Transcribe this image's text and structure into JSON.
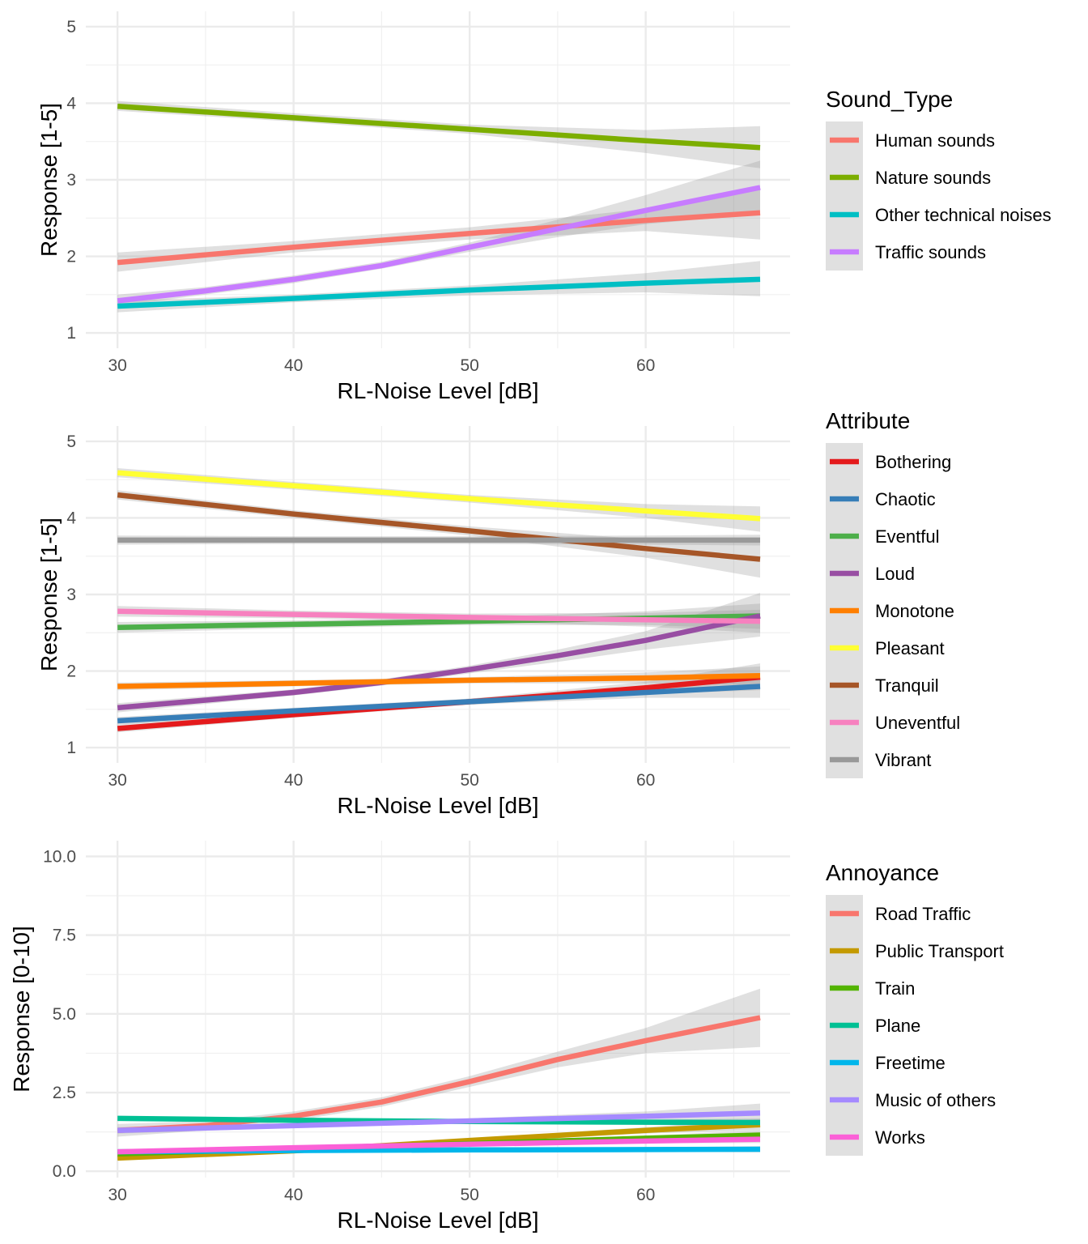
{
  "chart_data": [
    {
      "type": "line",
      "xlabel": "RL-Noise Level [dB]",
      "ylabel": "Response [1-5]",
      "xlim": [
        28.2,
        68.2
      ],
      "ylim": [
        0.8,
        5.2
      ],
      "x_ticks": [
        30,
        40,
        50,
        60
      ],
      "y_ticks": [
        1,
        2,
        3,
        4,
        5
      ],
      "y_tick_labels": [
        "1",
        "2",
        "3",
        "4",
        "5"
      ],
      "grid": true,
      "confidence_bands": true,
      "legend_title": "Sound_Type",
      "legend_position": "right",
      "series": [
        {
          "name": "Human sounds",
          "color": "#F8766D",
          "x": [
            30,
            40,
            50,
            60,
            66.5
          ],
          "y": [
            1.92,
            2.12,
            2.3,
            2.47,
            2.57
          ],
          "lower": [
            1.8,
            2.05,
            2.22,
            2.33,
            2.22
          ],
          "upper": [
            2.05,
            2.2,
            2.38,
            2.62,
            2.92
          ]
        },
        {
          "name": "Nature sounds",
          "color": "#7CAE00",
          "x": [
            30,
            40,
            50,
            60,
            66.5
          ],
          "y": [
            3.96,
            3.81,
            3.66,
            3.51,
            3.42
          ],
          "lower": [
            3.9,
            3.76,
            3.6,
            3.35,
            3.15
          ],
          "upper": [
            4.03,
            3.87,
            3.72,
            3.65,
            3.7
          ]
        },
        {
          "name": "Other technical noises",
          "color": "#00BFC4",
          "x": [
            30,
            40,
            50,
            60,
            66.5
          ],
          "y": [
            1.35,
            1.45,
            1.56,
            1.65,
            1.7
          ],
          "lower": [
            1.27,
            1.4,
            1.49,
            1.53,
            1.48
          ],
          "upper": [
            1.42,
            1.5,
            1.62,
            1.78,
            1.94
          ]
        },
        {
          "name": "Traffic sounds",
          "color": "#C77CFF",
          "x": [
            30,
            35,
            40,
            45,
            50,
            55,
            60,
            66.5
          ],
          "y": [
            1.42,
            1.55,
            1.7,
            1.88,
            2.12,
            2.36,
            2.6,
            2.9
          ],
          "lower": [
            1.35,
            1.5,
            1.65,
            1.84,
            2.06,
            2.25,
            2.42,
            2.55
          ],
          "upper": [
            1.5,
            1.6,
            1.75,
            1.93,
            2.18,
            2.48,
            2.8,
            3.25
          ]
        }
      ]
    },
    {
      "type": "line",
      "xlabel": "RL-Noise Level [dB]",
      "ylabel": "Response [1-5]",
      "xlim": [
        28.2,
        68.2
      ],
      "ylim": [
        0.8,
        5.2
      ],
      "x_ticks": [
        30,
        40,
        50,
        60
      ],
      "y_ticks": [
        1,
        2,
        3,
        4,
        5
      ],
      "y_tick_labels": [
        "1",
        "2",
        "3",
        "4",
        "5"
      ],
      "grid": true,
      "confidence_bands": true,
      "legend_title": "Attribute",
      "legend_position": "right",
      "series": [
        {
          "name": "Bothering",
          "color": "#E41A1C",
          "x": [
            30,
            40,
            50,
            60,
            66.5
          ],
          "y": [
            1.25,
            1.43,
            1.6,
            1.78,
            1.92
          ],
          "lower": [
            1.2,
            1.39,
            1.56,
            1.7,
            1.75
          ],
          "upper": [
            1.3,
            1.47,
            1.64,
            1.86,
            2.1
          ]
        },
        {
          "name": "Chaotic",
          "color": "#377EB8",
          "x": [
            30,
            40,
            50,
            60,
            66.5
          ],
          "y": [
            1.35,
            1.48,
            1.6,
            1.72,
            1.8
          ],
          "lower": [
            1.3,
            1.44,
            1.56,
            1.65,
            1.65
          ],
          "upper": [
            1.4,
            1.52,
            1.64,
            1.8,
            1.96
          ]
        },
        {
          "name": "Eventful",
          "color": "#4DAF4A",
          "x": [
            30,
            40,
            50,
            60,
            66.5
          ],
          "y": [
            2.57,
            2.61,
            2.65,
            2.69,
            2.72
          ],
          "lower": [
            2.5,
            2.56,
            2.6,
            2.6,
            2.55
          ],
          "upper": [
            2.64,
            2.66,
            2.7,
            2.78,
            2.88
          ]
        },
        {
          "name": "Loud",
          "color": "#984EA3",
          "x": [
            30,
            35,
            40,
            45,
            50,
            55,
            60,
            66.5
          ],
          "y": [
            1.52,
            1.62,
            1.72,
            1.85,
            2.02,
            2.2,
            2.4,
            2.72
          ],
          "lower": [
            1.46,
            1.57,
            1.68,
            1.81,
            1.97,
            2.12,
            2.28,
            2.45
          ],
          "upper": [
            1.58,
            1.67,
            1.76,
            1.89,
            2.07,
            2.28,
            2.52,
            3.02
          ]
        },
        {
          "name": "Monotone",
          "color": "#FF7F00",
          "x": [
            30,
            40,
            50,
            60,
            66.5
          ],
          "y": [
            1.8,
            1.84,
            1.88,
            1.91,
            1.94
          ],
          "lower": [
            1.75,
            1.8,
            1.84,
            1.84,
            1.82
          ],
          "upper": [
            1.85,
            1.88,
            1.92,
            1.98,
            2.06
          ]
        },
        {
          "name": "Pleasant",
          "color": "#FFFF33",
          "x": [
            30,
            40,
            50,
            60,
            66.5
          ],
          "y": [
            4.59,
            4.42,
            4.25,
            4.09,
            3.99
          ],
          "lower": [
            4.53,
            4.37,
            4.2,
            4.0,
            3.82
          ],
          "upper": [
            4.65,
            4.47,
            4.3,
            4.18,
            4.15
          ]
        },
        {
          "name": "Tranquil",
          "color": "#A65628",
          "x": [
            30,
            40,
            50,
            60,
            66.5
          ],
          "y": [
            4.3,
            4.05,
            3.83,
            3.6,
            3.46
          ],
          "lower": [
            4.24,
            4.0,
            3.77,
            3.48,
            3.22
          ],
          "upper": [
            4.36,
            4.1,
            3.89,
            3.72,
            3.7
          ]
        },
        {
          "name": "Uneventful",
          "color": "#F781BF",
          "x": [
            30,
            40,
            50,
            60,
            66.5
          ],
          "y": [
            2.78,
            2.74,
            2.7,
            2.67,
            2.65
          ],
          "lower": [
            2.71,
            2.69,
            2.65,
            2.58,
            2.5
          ],
          "upper": [
            2.85,
            2.79,
            2.75,
            2.76,
            2.8
          ]
        },
        {
          "name": "Vibrant",
          "color": "#999999",
          "x": [
            30,
            40,
            50,
            60,
            66.5
          ],
          "y": [
            3.71,
            3.71,
            3.71,
            3.71,
            3.71
          ],
          "lower": [
            3.65,
            3.66,
            3.66,
            3.65,
            3.64
          ],
          "upper": [
            3.77,
            3.76,
            3.76,
            3.77,
            3.78
          ]
        }
      ]
    },
    {
      "type": "line",
      "xlabel": "RL-Noise Level [dB]",
      "ylabel": "Response [0-10]",
      "xlim": [
        28.2,
        68.2
      ],
      "ylim": [
        -0.2,
        10.5
      ],
      "x_ticks": [
        30,
        40,
        50,
        60
      ],
      "y_ticks": [
        0,
        2.5,
        5,
        7.5,
        10
      ],
      "y_tick_labels": [
        "0.0",
        "2.5",
        "5.0",
        "7.5",
        "10.0"
      ],
      "grid": true,
      "confidence_bands": true,
      "legend_title": "Annoyance",
      "legend_position": "right",
      "series": [
        {
          "name": "Road Traffic",
          "color": "#F8766D",
          "x": [
            30,
            35,
            40,
            45,
            50,
            55,
            60,
            66.5
          ],
          "y": [
            1.3,
            1.45,
            1.75,
            2.2,
            2.85,
            3.55,
            4.15,
            4.88
          ],
          "lower": [
            1.1,
            1.3,
            1.6,
            2.05,
            2.68,
            3.3,
            3.75,
            3.95
          ],
          "upper": [
            1.5,
            1.6,
            1.9,
            2.35,
            3.02,
            3.8,
            4.55,
            5.8
          ]
        },
        {
          "name": "Public Transport",
          "color": "#C49A00",
          "x": [
            30,
            40,
            50,
            60,
            66.5
          ],
          "y": [
            0.42,
            0.65,
            0.98,
            1.3,
            1.48
          ],
          "lower": [
            0.35,
            0.59,
            0.92,
            1.2,
            1.3
          ],
          "upper": [
            0.5,
            0.71,
            1.04,
            1.4,
            1.66
          ]
        },
        {
          "name": "Train",
          "color": "#53B400",
          "x": [
            30,
            40,
            50,
            60,
            66.5
          ],
          "y": [
            0.55,
            0.72,
            0.88,
            1.05,
            1.15
          ],
          "lower": [
            0.49,
            0.67,
            0.83,
            0.97,
            1.0
          ],
          "upper": [
            0.61,
            0.77,
            0.93,
            1.13,
            1.3
          ]
        },
        {
          "name": "Plane",
          "color": "#00C094",
          "x": [
            30,
            40,
            50,
            60,
            66.5
          ],
          "y": [
            1.68,
            1.62,
            1.58,
            1.56,
            1.55
          ],
          "lower": [
            1.6,
            1.56,
            1.52,
            1.48,
            1.42
          ],
          "upper": [
            1.76,
            1.68,
            1.64,
            1.64,
            1.68
          ]
        },
        {
          "name": "Freetime",
          "color": "#00B6EB",
          "x": [
            30,
            40,
            50,
            60,
            66.5
          ],
          "y": [
            0.62,
            0.66,
            0.68,
            0.69,
            0.7
          ],
          "lower": [
            0.56,
            0.61,
            0.63,
            0.63,
            0.6
          ],
          "upper": [
            0.68,
            0.71,
            0.73,
            0.75,
            0.8
          ]
        },
        {
          "name": "Music of others",
          "color": "#A58AFF",
          "x": [
            30,
            40,
            50,
            60,
            66.5
          ],
          "y": [
            1.3,
            1.45,
            1.6,
            1.75,
            1.85
          ],
          "lower": [
            1.2,
            1.38,
            1.52,
            1.6,
            1.55
          ],
          "upper": [
            1.4,
            1.52,
            1.68,
            1.9,
            2.15
          ]
        },
        {
          "name": "Works",
          "color": "#FB61D7",
          "x": [
            30,
            40,
            50,
            60,
            66.5
          ],
          "y": [
            0.62,
            0.75,
            0.86,
            0.96,
            1.02
          ],
          "lower": [
            0.56,
            0.7,
            0.81,
            0.89,
            0.9
          ],
          "upper": [
            0.68,
            0.8,
            0.91,
            1.03,
            1.14
          ]
        }
      ]
    }
  ]
}
